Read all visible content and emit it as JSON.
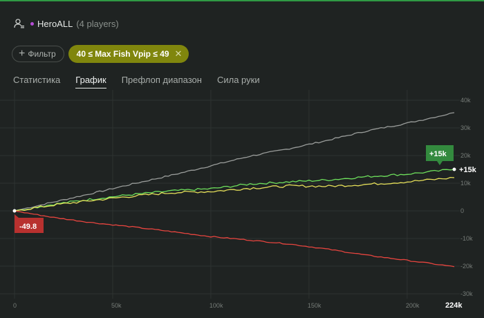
{
  "header": {
    "user_icon": "user-settings-icon",
    "player_name": "HeroALL",
    "player_count": "(4 players)",
    "dot_color": "#b54dd6"
  },
  "filters": {
    "add_filter_label": "Фильтр",
    "active_filter_label": "40 ≤ Max Fish Vpip ≤ 49"
  },
  "tabs": [
    {
      "label": "Статистика",
      "active": false
    },
    {
      "label": "График",
      "active": true
    },
    {
      "label": "Префлоп диапазон",
      "active": false
    },
    {
      "label": "Сила руки",
      "active": false
    }
  ],
  "chart_data": {
    "type": "line",
    "xlim": [
      0,
      224000
    ],
    "ylim": [
      -30000,
      40000
    ],
    "x_ticks": [
      "0",
      "50k",
      "100k",
      "150k",
      "200k"
    ],
    "x_max_label": "224k",
    "y_ticks": [
      "40k",
      "30k",
      "20k",
      "10k",
      "0",
      "-10k",
      "-20k",
      "-30k"
    ],
    "grid": true,
    "series": [
      {
        "color": "#9a9d9b",
        "x": [
          0,
          20000,
          40000,
          60000,
          80000,
          100000,
          120000,
          140000,
          160000,
          180000,
          200000,
          224000
        ],
        "y": [
          0,
          3200,
          6400,
          9700,
          12900,
          16300,
          19800,
          22500,
          25600,
          29000,
          31700,
          35500
        ]
      },
      {
        "color": "#6ee05c",
        "x": [
          0,
          20000,
          40000,
          60000,
          80000,
          100000,
          120000,
          140000,
          160000,
          180000,
          200000,
          224000
        ],
        "y": [
          0,
          2400,
          4300,
          5900,
          7200,
          8000,
          9700,
          10500,
          11200,
          12400,
          13300,
          15000
        ]
      },
      {
        "color": "#e6e05a",
        "x": [
          0,
          20000,
          40000,
          60000,
          80000,
          100000,
          120000,
          140000,
          160000,
          180000,
          200000,
          224000
        ],
        "y": [
          0,
          2100,
          3800,
          5300,
          6600,
          7000,
          8200,
          9000,
          8900,
          9600,
          10500,
          12000
        ]
      },
      {
        "color": "#e8453f",
        "x": [
          0,
          20000,
          40000,
          60000,
          80000,
          100000,
          120000,
          140000,
          160000,
          180000,
          200000,
          224000
        ],
        "y": [
          0,
          -2400,
          -4300,
          -5800,
          -7500,
          -9300,
          -10600,
          -12000,
          -13900,
          -16100,
          -17900,
          -20200
        ]
      }
    ],
    "annotations": {
      "start_value": "-49.8",
      "end_badge": "+15k",
      "end_label": "+15k",
      "end_badge_color": "#338a3e",
      "start_badge_color": "#b8312f"
    }
  }
}
